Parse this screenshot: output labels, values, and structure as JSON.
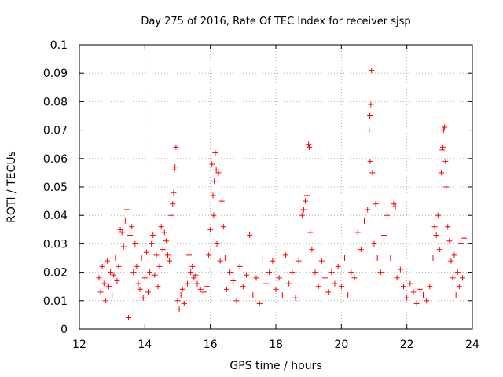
{
  "chart_data": {
    "type": "scatter",
    "title": "Day 275 of 2016, Rate Of TEC Index for receiver sjsp",
    "xlabel": "GPS time / hours",
    "ylabel": "ROTI / TECUs",
    "xlim": [
      12,
      24
    ],
    "ylim": [
      0,
      0.1
    ],
    "xticks": [
      12,
      14,
      16,
      18,
      20,
      22,
      24
    ],
    "xtick_labels": [
      "12",
      "14",
      "16",
      "18",
      "20",
      "22",
      "24"
    ],
    "yticks": [
      0,
      0.01,
      0.02,
      0.03,
      0.04,
      0.05,
      0.06,
      0.07,
      0.08,
      0.09,
      0.1
    ],
    "ytick_labels": [
      "0",
      "0.01",
      "0.02",
      "0.03",
      "0.04",
      "0.05",
      "0.06",
      "0.07",
      "0.08",
      "0.09",
      "0.1"
    ],
    "grid": true,
    "marker": "+",
    "color": "#ff0000",
    "series": [
      {
        "name": "ROTI sjsp",
        "points": [
          [
            12.6,
            0.018
          ],
          [
            12.65,
            0.013
          ],
          [
            12.7,
            0.022
          ],
          [
            12.75,
            0.016
          ],
          [
            12.8,
            0.01
          ],
          [
            12.85,
            0.024
          ],
          [
            12.9,
            0.015
          ],
          [
            12.95,
            0.02
          ],
          [
            13.0,
            0.012
          ],
          [
            13.05,
            0.019
          ],
          [
            13.1,
            0.025
          ],
          [
            13.15,
            0.017
          ],
          [
            13.2,
            0.022
          ],
          [
            13.25,
            0.035
          ],
          [
            13.3,
            0.034
          ],
          [
            13.35,
            0.029
          ],
          [
            13.4,
            0.038
          ],
          [
            13.45,
            0.042
          ],
          [
            13.5,
            0.004
          ],
          [
            13.55,
            0.033
          ],
          [
            13.6,
            0.036
          ],
          [
            13.65,
            0.02
          ],
          [
            13.7,
            0.03
          ],
          [
            13.75,
            0.022
          ],
          [
            13.8,
            0.016
          ],
          [
            13.85,
            0.014
          ],
          [
            13.9,
            0.025
          ],
          [
            13.95,
            0.011
          ],
          [
            14.0,
            0.018
          ],
          [
            14.05,
            0.027
          ],
          [
            14.1,
            0.013
          ],
          [
            14.15,
            0.02
          ],
          [
            14.2,
            0.03
          ],
          [
            14.25,
            0.033
          ],
          [
            14.3,
            0.019
          ],
          [
            14.35,
            0.026
          ],
          [
            14.4,
            0.015
          ],
          [
            14.45,
            0.022
          ],
          [
            14.5,
            0.036
          ],
          [
            14.55,
            0.028
          ],
          [
            14.6,
            0.034
          ],
          [
            14.65,
            0.031
          ],
          [
            14.7,
            0.026
          ],
          [
            14.75,
            0.024
          ],
          [
            14.8,
            0.04
          ],
          [
            14.85,
            0.044
          ],
          [
            14.88,
            0.048
          ],
          [
            14.9,
            0.056
          ],
          [
            14.92,
            0.057
          ],
          [
            14.95,
            0.064
          ],
          [
            15.0,
            0.01
          ],
          [
            15.05,
            0.007
          ],
          [
            15.1,
            0.012
          ],
          [
            15.15,
            0.014
          ],
          [
            15.2,
            0.009
          ],
          [
            15.3,
            0.016
          ],
          [
            15.35,
            0.026
          ],
          [
            15.4,
            0.02
          ],
          [
            15.45,
            0.022
          ],
          [
            15.5,
            0.018
          ],
          [
            15.55,
            0.019
          ],
          [
            15.6,
            0.016
          ],
          [
            15.7,
            0.014
          ],
          [
            15.8,
            0.013
          ],
          [
            15.9,
            0.015
          ],
          [
            15.95,
            0.026
          ],
          [
            16.0,
            0.035
          ],
          [
            16.05,
            0.058
          ],
          [
            16.08,
            0.047
          ],
          [
            16.1,
            0.04
          ],
          [
            16.12,
            0.052
          ],
          [
            16.15,
            0.062
          ],
          [
            16.18,
            0.056
          ],
          [
            16.2,
            0.03
          ],
          [
            16.25,
            0.055
          ],
          [
            16.3,
            0.024
          ],
          [
            16.35,
            0.045
          ],
          [
            16.4,
            0.036
          ],
          [
            16.45,
            0.025
          ],
          [
            16.5,
            0.014
          ],
          [
            16.6,
            0.02
          ],
          [
            16.7,
            0.017
          ],
          [
            16.8,
            0.01
          ],
          [
            16.9,
            0.022
          ],
          [
            17.0,
            0.015
          ],
          [
            17.1,
            0.019
          ],
          [
            17.2,
            0.033
          ],
          [
            17.3,
            0.012
          ],
          [
            17.4,
            0.018
          ],
          [
            17.5,
            0.009
          ],
          [
            17.6,
            0.025
          ],
          [
            17.7,
            0.016
          ],
          [
            17.8,
            0.02
          ],
          [
            17.9,
            0.024
          ],
          [
            18.0,
            0.014
          ],
          [
            18.1,
            0.018
          ],
          [
            18.2,
            0.012
          ],
          [
            18.3,
            0.026
          ],
          [
            18.4,
            0.016
          ],
          [
            18.5,
            0.02
          ],
          [
            18.6,
            0.011
          ],
          [
            18.7,
            0.024
          ],
          [
            18.8,
            0.04
          ],
          [
            18.85,
            0.042
          ],
          [
            18.9,
            0.045
          ],
          [
            18.95,
            0.047
          ],
          [
            19.0,
            0.065
          ],
          [
            19.02,
            0.064
          ],
          [
            19.05,
            0.034
          ],
          [
            19.1,
            0.028
          ],
          [
            19.2,
            0.02
          ],
          [
            19.3,
            0.015
          ],
          [
            19.4,
            0.024
          ],
          [
            19.5,
            0.018
          ],
          [
            19.6,
            0.013
          ],
          [
            19.7,
            0.02
          ],
          [
            19.8,
            0.016
          ],
          [
            19.9,
            0.022
          ],
          [
            20.0,
            0.015
          ],
          [
            20.1,
            0.025
          ],
          [
            20.2,
            0.012
          ],
          [
            20.3,
            0.02
          ],
          [
            20.4,
            0.018
          ],
          [
            20.5,
            0.034
          ],
          [
            20.6,
            0.028
          ],
          [
            20.7,
            0.038
          ],
          [
            20.8,
            0.042
          ],
          [
            20.85,
            0.07
          ],
          [
            20.87,
            0.075
          ],
          [
            20.88,
            0.059
          ],
          [
            20.9,
            0.079
          ],
          [
            20.92,
            0.091
          ],
          [
            20.95,
            0.055
          ],
          [
            21.0,
            0.03
          ],
          [
            21.05,
            0.044
          ],
          [
            21.1,
            0.025
          ],
          [
            21.2,
            0.02
          ],
          [
            21.3,
            0.033
          ],
          [
            21.4,
            0.04
          ],
          [
            21.5,
            0.025
          ],
          [
            21.6,
            0.044
          ],
          [
            21.65,
            0.043
          ],
          [
            21.7,
            0.018
          ],
          [
            21.8,
            0.021
          ],
          [
            21.9,
            0.015
          ],
          [
            22.0,
            0.011
          ],
          [
            22.1,
            0.016
          ],
          [
            22.2,
            0.013
          ],
          [
            22.3,
            0.009
          ],
          [
            22.4,
            0.014
          ],
          [
            22.5,
            0.012
          ],
          [
            22.6,
            0.01
          ],
          [
            22.7,
            0.015
          ],
          [
            22.8,
            0.025
          ],
          [
            22.85,
            0.036
          ],
          [
            22.9,
            0.033
          ],
          [
            22.95,
            0.04
          ],
          [
            23.0,
            0.028
          ],
          [
            23.05,
            0.055
          ],
          [
            23.08,
            0.063
          ],
          [
            23.1,
            0.064
          ],
          [
            23.12,
            0.07
          ],
          [
            23.15,
            0.071
          ],
          [
            23.18,
            0.059
          ],
          [
            23.2,
            0.05
          ],
          [
            23.25,
            0.036
          ],
          [
            23.3,
            0.031
          ],
          [
            23.35,
            0.024
          ],
          [
            23.4,
            0.018
          ],
          [
            23.45,
            0.026
          ],
          [
            23.5,
            0.012
          ],
          [
            23.55,
            0.02
          ],
          [
            23.6,
            0.015
          ],
          [
            23.65,
            0.03
          ],
          [
            23.7,
            0.018
          ],
          [
            23.75,
            0.032
          ]
        ]
      }
    ]
  }
}
